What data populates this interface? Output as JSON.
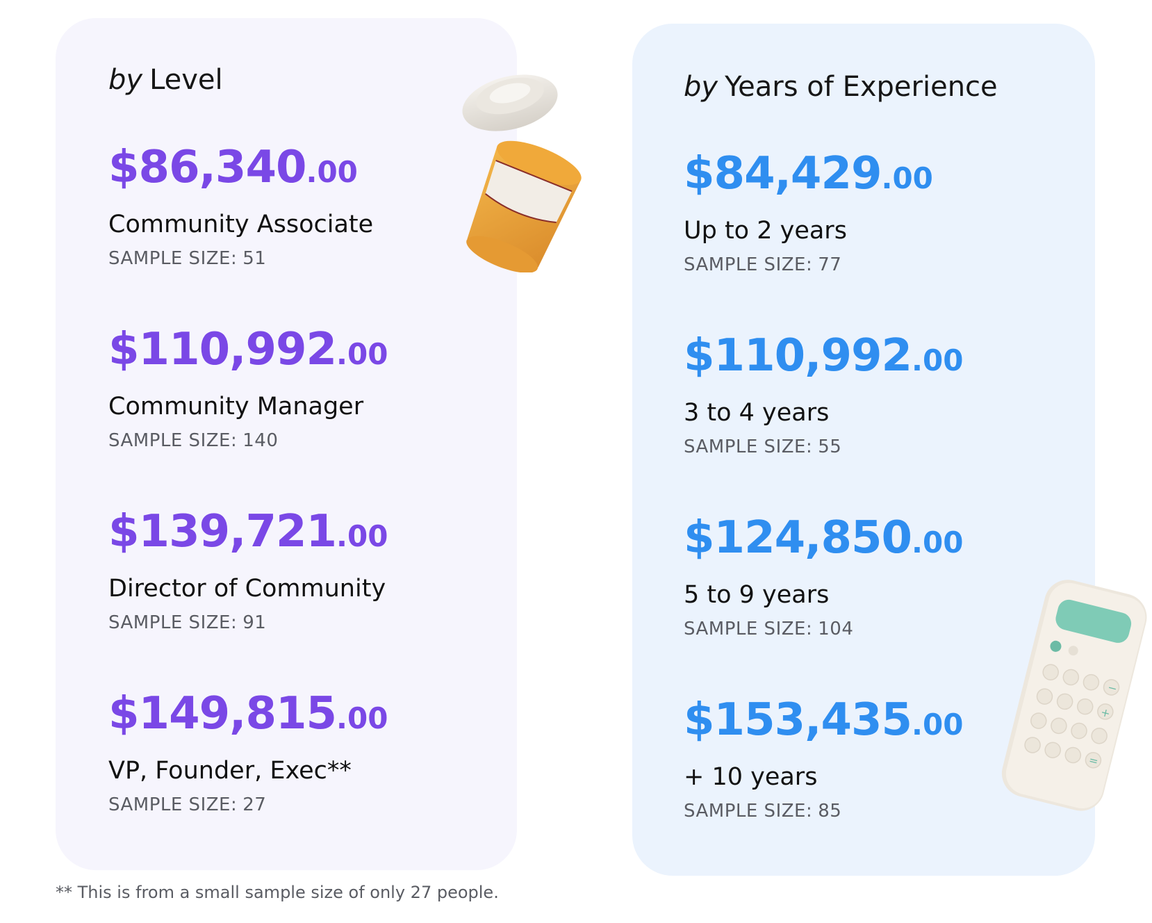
{
  "level_card": {
    "title_prefix": "by",
    "title": "Level",
    "entries": [
      {
        "amount": "$86,340",
        "cents": ".00",
        "label": "Community Associate",
        "sample_label": "SAMPLE SIZE:",
        "sample_value": "51"
      },
      {
        "amount": "$110,992",
        "cents": ".00",
        "label": "Community Manager",
        "sample_label": "SAMPLE SIZE:",
        "sample_value": "140"
      },
      {
        "amount": "$139,721",
        "cents": ".00",
        "label": "Director of Community",
        "sample_label": "SAMPLE SIZE:",
        "sample_value": "91"
      },
      {
        "amount": "$149,815",
        "cents": ".00",
        "label": "VP, Founder, Exec**",
        "sample_label": "SAMPLE SIZE:",
        "sample_value": "27"
      }
    ]
  },
  "experience_card": {
    "title_prefix": "by",
    "title": "Years of Experience",
    "entries": [
      {
        "amount": "$84,429",
        "cents": ".00",
        "label": "Up to 2 years",
        "sample_label": "SAMPLE SIZE:",
        "sample_value": "77"
      },
      {
        "amount": "$110,992",
        "cents": ".00",
        "label": "3 to 4 years",
        "sample_label": "SAMPLE SIZE:",
        "sample_value": "55"
      },
      {
        "amount": "$124,850",
        "cents": ".00",
        "label": "5 to 9 years",
        "sample_label": "SAMPLE SIZE:",
        "sample_value": "104"
      },
      {
        "amount": "$153,435",
        "cents": ".00",
        "label": "+ 10 years",
        "sample_label": "SAMPLE SIZE:",
        "sample_value": "85"
      }
    ]
  },
  "footnote": "** This is from a small sample size of only 27 people.",
  "colors": {
    "level_amount": "#7a48e6",
    "experience_amount": "#2f8ef0",
    "level_card_bg": "#f6f5fd",
    "experience_card_bg": "#ebf3fd"
  },
  "decorations": {
    "left": "coffee-cup-icon",
    "right": "calculator-icon"
  }
}
